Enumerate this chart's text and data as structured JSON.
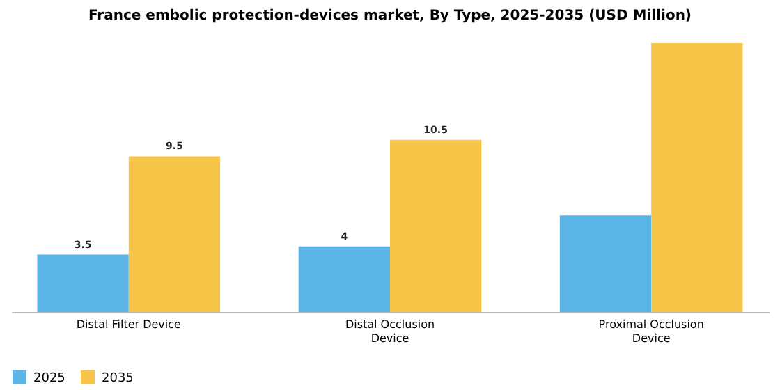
{
  "chart_data": {
    "type": "bar",
    "title": "France embolic protection-devices market, By Type, 2025-2035 (USD Million)",
    "categories": [
      "Distal Filter Device",
      "Distal Occlusion Device",
      "Proximal Occlusion Device"
    ],
    "series": [
      {
        "name": "2025",
        "color": "#5ab4e5",
        "values": [
          3.5,
          4,
          5.9
        ],
        "value_labels": [
          "3.5",
          "4",
          null
        ]
      },
      {
        "name": "2035",
        "color": "#f7c548",
        "values": [
          9.5,
          10.5,
          16.4
        ],
        "value_labels": [
          "9.5",
          "10.5",
          null
        ]
      }
    ],
    "legend": "bottom",
    "grid": false
  }
}
